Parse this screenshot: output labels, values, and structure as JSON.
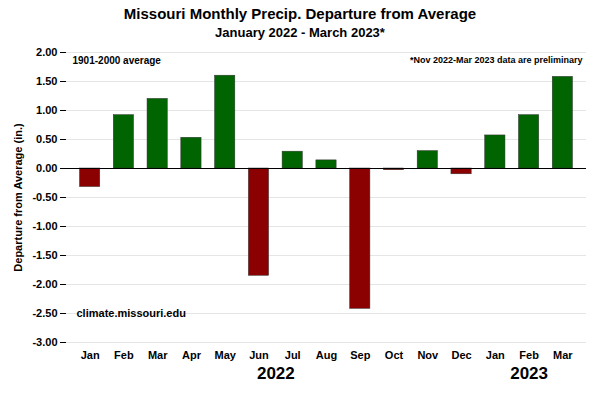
{
  "chart_data": {
    "type": "bar",
    "title": "Missouri Monthly Precip. Departure from Average",
    "subtitle": "January 2022 - March 2023*",
    "ylabel": "Departure from Average (in.)",
    "annotations": [
      "1901-2000 average",
      "*Nov 2022-Mar 2023 data are preliminary",
      "climate.missouri.edu"
    ],
    "categories": [
      "Jan",
      "Feb",
      "Mar",
      "Apr",
      "May",
      "Jun",
      "Jul",
      "Aug",
      "Sep",
      "Oct",
      "Nov",
      "Dec",
      "Jan",
      "Feb",
      "Mar"
    ],
    "years": [
      "2022",
      "2022",
      "2022",
      "2022",
      "2022",
      "2022",
      "2022",
      "2022",
      "2022",
      "2022",
      "2022",
      "2022",
      "2023",
      "2023",
      "2023"
    ],
    "values": [
      -0.32,
      0.92,
      1.2,
      0.53,
      1.6,
      -1.85,
      0.29,
      0.14,
      -2.42,
      -0.03,
      0.3,
      -0.1,
      0.57,
      0.92,
      1.58
    ],
    "colors": [
      "#8B0000",
      "#006400",
      "#006400",
      "#006400",
      "#006400",
      "#8B0000",
      "#006400",
      "#006400",
      "#8B0000",
      "#8B0000",
      "#006400",
      "#8B0000",
      "#006400",
      "#006400",
      "#006400"
    ],
    "ylim": [
      -3.0,
      2.0
    ],
    "yticks": [
      {
        "value": -3.0,
        "label": "-3.00"
      },
      {
        "value": -2.5,
        "label": "-2.50"
      },
      {
        "value": -2.0,
        "label": "-2.00"
      },
      {
        "value": -1.5,
        "label": "-1.50"
      },
      {
        "value": -1.0,
        "label": "-1.00"
      },
      {
        "value": -0.5,
        "label": "-0.50"
      },
      {
        "value": 0.0,
        "label": "0.00"
      },
      {
        "value": 0.5,
        "label": "0.50"
      },
      {
        "value": 1.0,
        "label": "1.00"
      },
      {
        "value": 1.5,
        "label": "1.50"
      },
      {
        "value": 2.0,
        "label": "2.00"
      }
    ],
    "grid": true
  }
}
